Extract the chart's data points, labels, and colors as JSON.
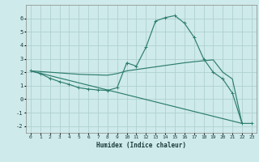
{
  "xlabel": "Humidex (Indice chaleur)",
  "bg_color": "#ceeaea",
  "grid_color": "#b0d0d0",
  "line_color": "#2e7d6e",
  "xlim": [
    -0.5,
    23.5
  ],
  "ylim": [
    -2.5,
    7.0
  ],
  "xticks": [
    0,
    1,
    2,
    3,
    4,
    5,
    6,
    7,
    8,
    9,
    10,
    11,
    12,
    13,
    14,
    15,
    16,
    17,
    18,
    19,
    20,
    21,
    22,
    23
  ],
  "yticks": [
    -2,
    -1,
    0,
    1,
    2,
    3,
    4,
    5,
    6
  ],
  "line1_x": [
    0,
    1,
    2,
    3,
    4,
    5,
    6,
    7,
    8,
    9,
    10,
    11,
    12,
    13,
    14,
    15,
    16,
    17,
    18,
    19,
    20,
    21,
    22,
    23
  ],
  "line1_y": [
    2.1,
    1.9,
    1.55,
    1.3,
    1.1,
    0.85,
    0.75,
    0.68,
    0.65,
    0.85,
    2.7,
    2.45,
    3.85,
    5.8,
    6.05,
    6.2,
    5.65,
    4.6,
    3.0,
    2.0,
    1.5,
    0.45,
    -1.8,
    -1.8
  ],
  "line2_x": [
    0,
    22
  ],
  "line2_y": [
    2.1,
    -1.8
  ],
  "line3_x": [
    0,
    1,
    2,
    3,
    4,
    5,
    6,
    7,
    8,
    9,
    10,
    11,
    12,
    13,
    14,
    15,
    16,
    17,
    18,
    19,
    20,
    21,
    22
  ],
  "line3_y": [
    2.1,
    2.05,
    2.0,
    1.95,
    1.9,
    1.85,
    1.82,
    1.8,
    1.78,
    1.9,
    2.1,
    2.2,
    2.3,
    2.4,
    2.5,
    2.6,
    2.7,
    2.78,
    2.85,
    2.92,
    2.0,
    1.5,
    -1.8
  ]
}
